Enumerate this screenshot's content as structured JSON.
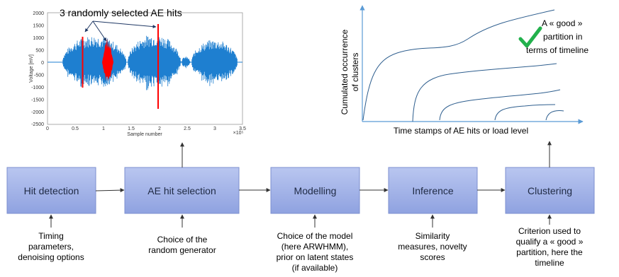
{
  "signal_plot": {
    "title": "3 randomly selected AE hits",
    "ylabel": "Voltage [mV]",
    "xlabel": "Sample number",
    "x_exponent": "×10⁵",
    "yticks": [
      "2000",
      "1500",
      "1000",
      "500",
      "0",
      "-500",
      "-1000",
      "-1500",
      "-2000",
      "-2500"
    ],
    "xticks": [
      "0",
      "0.5",
      "1",
      "1.5",
      "2",
      "2.5",
      "3",
      "3.5"
    ],
    "colors": {
      "signal": "#1e7fd0",
      "highlight": "#ff0000"
    }
  },
  "cumul_plot": {
    "ylabel_line1": "Cumulated occurrence",
    "ylabel_line2": "of clusters",
    "xlabel": "Time stamps of AE hits or load level",
    "annotation": [
      "A « good »",
      "partition in",
      "terms of timeline"
    ],
    "check_icon": "checkmark-icon",
    "colors": {
      "curve": "#2e5e8e",
      "check": "#22b14c",
      "axis": "#5b9bd5"
    }
  },
  "pipeline": {
    "steps": [
      {
        "label": "Hit detection",
        "desc": [
          "Timing",
          "parameters,",
          "denoising options"
        ]
      },
      {
        "label": "AE hit selection",
        "desc": [
          "Choice of the",
          "random generator"
        ]
      },
      {
        "label": "Modelling",
        "desc": [
          "Choice of the model",
          "(here ARWHMM),",
          "prior on latent states",
          "(if available)"
        ]
      },
      {
        "label": "Inference",
        "desc": [
          "Similarity",
          "measures, novelty",
          "scores"
        ]
      },
      {
        "label": "Clustering",
        "desc": [
          "Criterion used to",
          "qualify a « good »",
          "partition, here the",
          "timeline"
        ]
      }
    ],
    "colors": {
      "box_fill": "#a8b7e8",
      "box_stroke": "#7c8fcf",
      "arrow": "#333333"
    }
  }
}
